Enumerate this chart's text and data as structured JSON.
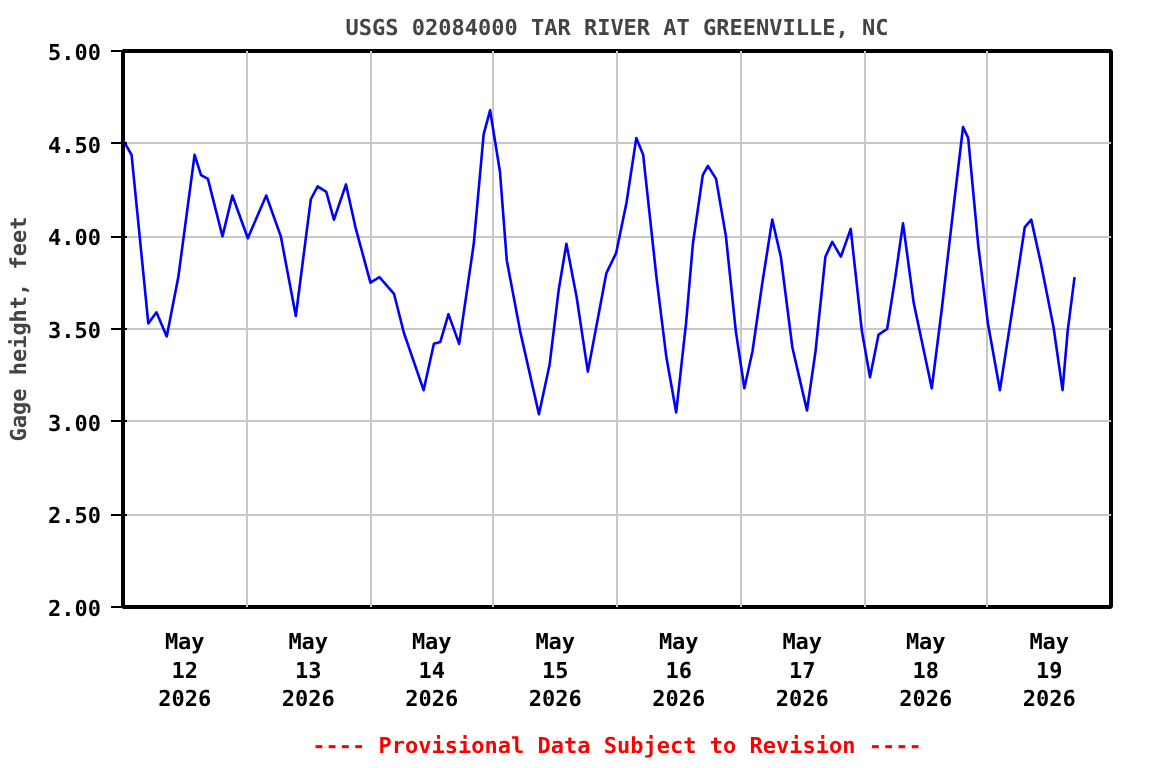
{
  "chart_data": {
    "type": "line",
    "title": "USGS 02084000 TAR RIVER AT GREENVILLE, NC",
    "ylabel": "Gage height, feet",
    "annotations": [
      "---- Provisional Data Subject to Revision ----"
    ],
    "x": [
      "2026-05-12T00:00",
      "2026-05-12T01:40",
      "2026-05-12T04:55",
      "2026-05-12T06:30",
      "2026-05-12T08:30",
      "2026-05-12T10:45",
      "2026-05-12T13:55",
      "2026-05-12T15:10",
      "2026-05-12T16:30",
      "2026-05-12T19:20",
      "2026-05-12T21:15",
      "2026-05-13T00:15",
      "2026-05-13T03:50",
      "2026-05-13T06:40",
      "2026-05-13T09:35",
      "2026-05-13T12:30",
      "2026-05-13T13:50",
      "2026-05-13T15:30",
      "2026-05-13T17:00",
      "2026-05-13T19:20",
      "2026-05-13T21:10",
      "2026-05-14T00:05",
      "2026-05-14T01:50",
      "2026-05-14T04:40",
      "2026-05-14T06:35",
      "2026-05-14T10:25",
      "2026-05-14T12:25",
      "2026-05-14T13:40",
      "2026-05-14T15:15",
      "2026-05-14T17:20",
      "2026-05-14T20:10",
      "2026-05-14T22:05",
      "2026-05-14T23:20",
      "2026-05-15T01:15",
      "2026-05-15T02:35",
      "2026-05-15T05:10",
      "2026-05-15T08:50",
      "2026-05-15T10:55",
      "2026-05-15T12:40",
      "2026-05-15T14:10",
      "2026-05-15T16:10",
      "2026-05-15T18:20",
      "2026-05-15T21:55",
      "2026-05-15T23:50",
      "2026-05-16T01:50",
      "2026-05-16T03:45",
      "2026-05-16T05:05",
      "2026-05-16T07:40",
      "2026-05-16T09:35",
      "2026-05-16T11:30",
      "2026-05-16T13:25",
      "2026-05-16T14:45",
      "2026-05-16T16:40",
      "2026-05-16T17:40",
      "2026-05-16T19:15",
      "2026-05-16T21:10",
      "2026-05-16T23:05",
      "2026-05-17T00:45",
      "2026-05-17T02:20",
      "2026-05-17T04:15",
      "2026-05-17T06:10",
      "2026-05-17T07:50",
      "2026-05-17T10:05",
      "2026-05-17T12:55",
      "2026-05-17T14:35",
      "2026-05-17T16:30",
      "2026-05-17T17:50",
      "2026-05-17T19:30",
      "2026-05-17T21:25",
      "2026-05-17T23:35",
      "2026-05-18T01:10",
      "2026-05-18T02:50",
      "2026-05-18T04:30",
      "2026-05-18T06:05",
      "2026-05-18T07:35",
      "2026-05-18T09:40",
      "2026-05-18T13:10",
      "2026-05-18T15:05",
      "2026-05-18T17:40",
      "2026-05-18T19:15",
      "2026-05-18T20:15",
      "2026-05-18T22:10",
      "2026-05-19T00:05",
      "2026-05-19T02:25",
      "2026-05-19T04:35",
      "2026-05-19T07:15",
      "2026-05-19T08:30",
      "2026-05-19T10:25",
      "2026-05-19T12:50",
      "2026-05-19T14:35",
      "2026-05-19T15:35",
      "2026-05-19T16:55"
    ],
    "series": [
      {
        "color": "#0000ff",
        "values": [
          4.52,
          4.44,
          3.53,
          3.59,
          3.46,
          3.78,
          4.44,
          4.33,
          4.31,
          4.0,
          4.22,
          3.99,
          4.22,
          4.0,
          3.57,
          4.2,
          4.27,
          4.24,
          4.09,
          4.28,
          4.05,
          3.75,
          3.78,
          3.69,
          3.48,
          3.17,
          3.42,
          3.43,
          3.58,
          3.42,
          3.96,
          4.55,
          4.68,
          4.35,
          3.87,
          3.49,
          3.04,
          3.31,
          3.71,
          3.96,
          3.67,
          3.27,
          3.8,
          3.91,
          4.18,
          4.53,
          4.44,
          3.78,
          3.35,
          3.05,
          3.53,
          3.96,
          4.33,
          4.38,
          4.31,
          4.0,
          3.49,
          3.18,
          3.38,
          3.75,
          4.09,
          3.89,
          3.4,
          3.06,
          3.38,
          3.89,
          3.97,
          3.89,
          4.04,
          3.49,
          3.24,
          3.47,
          3.5,
          3.78,
          4.07,
          3.64,
          3.18,
          3.6,
          4.22,
          4.59,
          4.53,
          3.96,
          3.53,
          3.17,
          3.56,
          4.05,
          4.09,
          3.85,
          3.51,
          3.17,
          3.49,
          3.78
        ]
      }
    ],
    "xlim": [
      "2026-05-12T00:00",
      "2026-05-20T00:00"
    ],
    "xticks": [
      {
        "value": "2026-05-12T12:00",
        "label": "May\n12\n2026"
      },
      {
        "value": "2026-05-13T00:00",
        "label": null
      },
      {
        "value": "2026-05-13T12:00",
        "label": "May\n13\n2026"
      },
      {
        "value": "2026-05-14T00:00",
        "label": null
      },
      {
        "value": "2026-05-14T12:00",
        "label": "May\n14\n2026"
      },
      {
        "value": "2026-05-15T00:00",
        "label": null
      },
      {
        "value": "2026-05-15T12:00",
        "label": "May\n15\n2026"
      },
      {
        "value": "2026-05-16T00:00",
        "label": null
      },
      {
        "value": "2026-05-16T12:00",
        "label": "May\n16\n2026"
      },
      {
        "value": "2026-05-17T00:00",
        "label": null
      },
      {
        "value": "2026-05-17T12:00",
        "label": "May\n17\n2026"
      },
      {
        "value": "2026-05-18T00:00",
        "label": null
      },
      {
        "value": "2026-05-18T12:00",
        "label": "May\n18\n2026"
      },
      {
        "value": "2026-05-19T00:00",
        "label": null
      },
      {
        "value": "2026-05-19T12:00",
        "label": "May\n19\n2026"
      }
    ],
    "ylim": [
      2,
      5
    ],
    "yticks": [
      {
        "value": 2,
        "label": "2.00"
      },
      {
        "value": 2.5,
        "label": "2.50"
      },
      {
        "value": 3,
        "label": "3.00"
      },
      {
        "value": 3.5,
        "label": "3.50"
      },
      {
        "value": 4,
        "label": "4.00"
      },
      {
        "value": 4.5,
        "label": "4.50"
      },
      {
        "value": 5,
        "label": "5.00"
      }
    ],
    "grid": true,
    "marker": "none",
    "line_style": "solid"
  }
}
